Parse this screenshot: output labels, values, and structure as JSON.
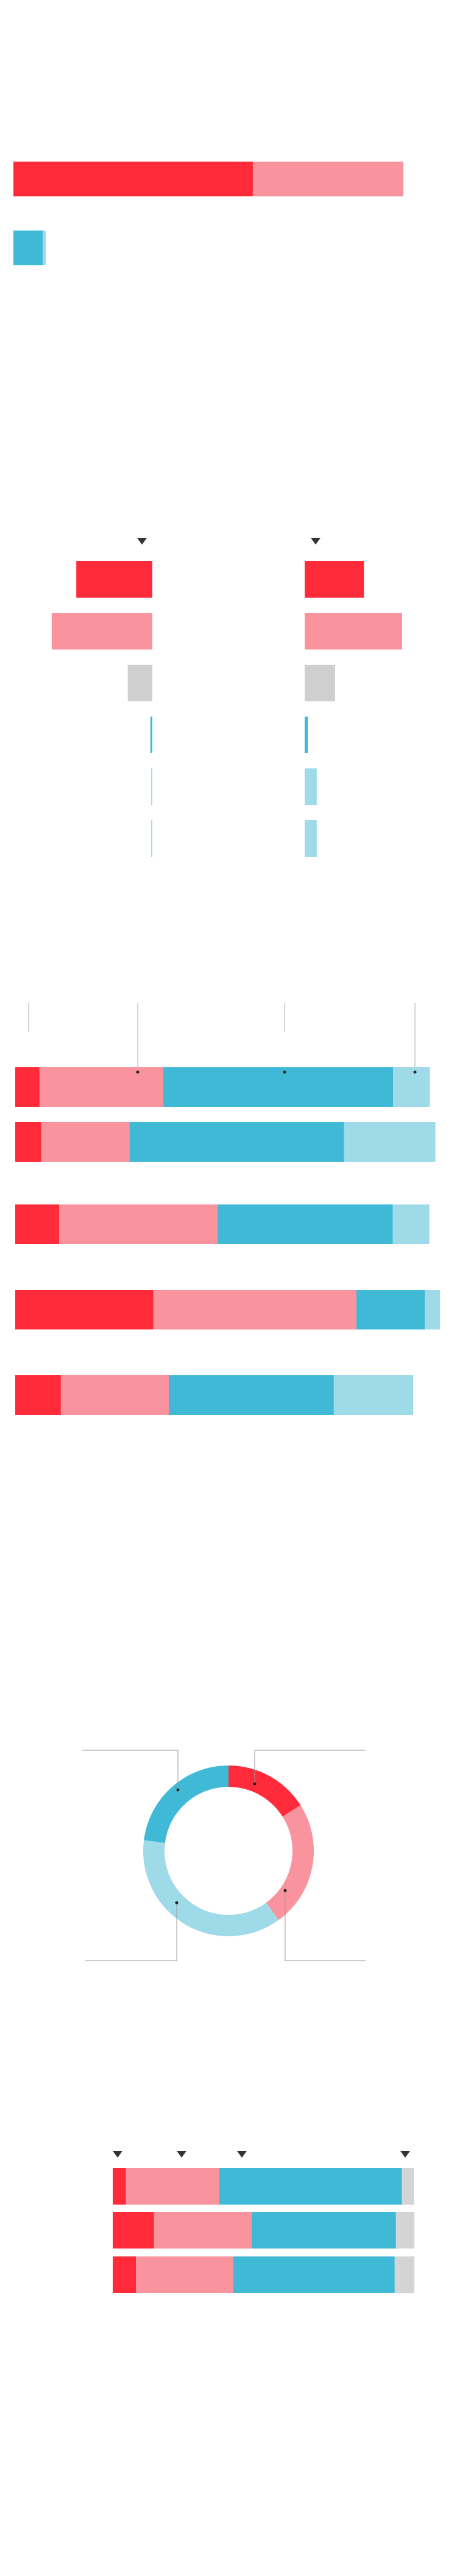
{
  "top_bars": {
    "colors": [
      [
        "#ff2a3a",
        "#f9939e"
      ],
      [
        "#40b9d6",
        "#9fdae9"
      ]
    ],
    "rows": [
      [
        61.4,
        38.6
      ],
      [
        7.5,
        0.8
      ]
    ]
  },
  "diverging": {
    "colors": [
      "#ff2a3a",
      "#f9939e",
      "#cfcfcf",
      "#40b9d6",
      "#9fdae9",
      "#9fdae9"
    ],
    "left": [
      19.5,
      25.8,
      6.3,
      0.5,
      0.3,
      0.3
    ],
    "right": [
      15.2,
      25,
      7.8,
      0.8,
      3.1,
      3.1
    ]
  },
  "stacked": {
    "colors": [
      "#ff2a3a",
      "#f9939e",
      "#40b9d6",
      "#9fdae9"
    ],
    "rows": [
      [
        5.7,
        29.0,
        53.9,
        8.6
      ],
      [
        6.1,
        20.7,
        50.3,
        21.4
      ],
      [
        10.3,
        37.1,
        41.1,
        8.6
      ],
      [
        32.4,
        47.6,
        16,
        3.6
      ],
      [
        10.7,
        25.3,
        38.7,
        18.6
      ]
    ]
  },
  "donut": {
    "colors": [
      "#ff2a3a",
      "#f9939e",
      "#9fdae9",
      "#40b9d6"
    ],
    "values": [
      16,
      24,
      37,
      23
    ]
  },
  "bottom_bars": {
    "colors": [
      "#ff2a3a",
      "#f9939e",
      "#40b9d6",
      "#d4d4d4"
    ],
    "rows": [
      [
        4.4,
        30.9,
        60.6,
        4.0
      ],
      [
        13.7,
        32.3,
        47.9,
        6.1
      ],
      [
        7.7,
        32.3,
        53.5,
        6.5
      ]
    ]
  }
}
